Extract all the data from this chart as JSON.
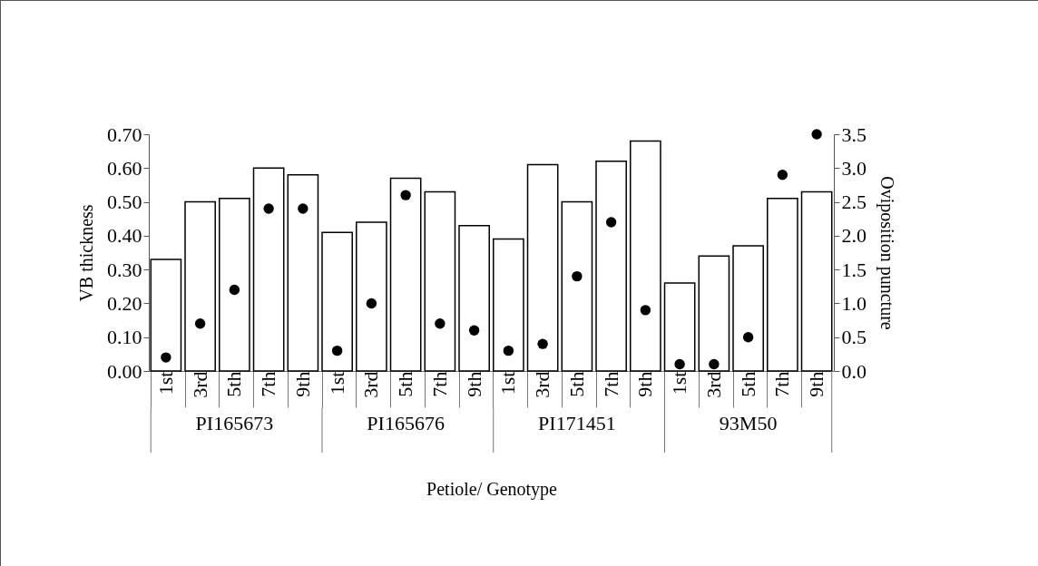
{
  "chart_data": {
    "type": "bar",
    "xlabel": "Petiole/ Genotype",
    "ylabel": "VB thickness",
    "y2label": "Oviposition puncture",
    "categories": [
      "1st",
      "3rd",
      "5th",
      "7th",
      "9th",
      "1st",
      "3rd",
      "5th",
      "7th",
      "9th",
      "1st",
      "3rd",
      "5th",
      "7th",
      "9th",
      "1st",
      "3rd",
      "5th",
      "7th",
      "9th"
    ],
    "annotations": [
      "PI165673",
      "PI165676",
      "PI171451",
      "93M50"
    ],
    "series": [
      {
        "color": "#ffffff",
        "values": [
          0.33,
          0.5,
          0.51,
          0.6,
          0.58,
          0.41,
          0.44,
          0.57,
          0.53,
          0.43,
          0.39,
          0.61,
          0.5,
          0.62,
          0.68,
          0.26,
          0.34,
          0.37,
          0.51,
          0.53
        ]
      },
      {
        "type": "scatter",
        "axis": "y2",
        "color": "#000000",
        "values": [
          0.2,
          0.7,
          1.2,
          2.4,
          2.4,
          0.3,
          1.0,
          2.6,
          0.7,
          0.6,
          0.3,
          0.4,
          1.4,
          2.2,
          0.9,
          0.1,
          0.1,
          0.5,
          2.9,
          3.5
        ]
      }
    ],
    "marker": "circle",
    "grid": false,
    "ylim": [
      0,
      0.7
    ],
    "yticks": [
      {
        "value": 0,
        "label": "0.00"
      },
      {
        "value": 0.1,
        "label": "0.10"
      },
      {
        "value": 0.2,
        "label": "0.20"
      },
      {
        "value": 0.3,
        "label": "0.30"
      },
      {
        "value": 0.4,
        "label": "0.40"
      },
      {
        "value": 0.5,
        "label": "0.50"
      },
      {
        "value": 0.6,
        "label": "0.60"
      },
      {
        "value": 0.7,
        "label": "0.70"
      }
    ],
    "y2lim": [
      0,
      3.5
    ],
    "y2ticks": [
      {
        "value": 0,
        "label": "0.0"
      },
      {
        "value": 0.5,
        "label": "0.5"
      },
      {
        "value": 1,
        "label": "1.0"
      },
      {
        "value": 1.5,
        "label": "1.5"
      },
      {
        "value": 2,
        "label": "2.0"
      },
      {
        "value": 2.5,
        "label": "2.5"
      },
      {
        "value": 3,
        "label": "3.0"
      },
      {
        "value": 3.5,
        "label": "3.5"
      }
    ]
  }
}
